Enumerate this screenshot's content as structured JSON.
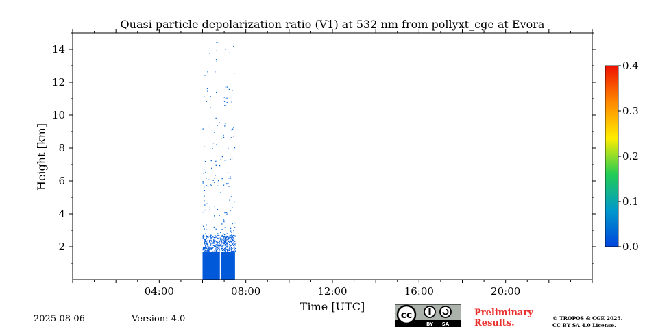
{
  "chart_data": {
    "type": "heatmap",
    "title": "Quasi particle depolarization ratio (V1) at 532 nm from pollyxt_cge at Evora",
    "xlabel": "Time [UTC]",
    "ylabel": "Height [km]",
    "x_range_hours": [
      0,
      24
    ],
    "ylim_km": [
      0,
      15
    ],
    "x_ticks": [
      {
        "hour": 4,
        "label": "04:00"
      },
      {
        "hour": 8,
        "label": "08:00"
      },
      {
        "hour": 12,
        "label": "12:00"
      },
      {
        "hour": 16,
        "label": "16:00"
      },
      {
        "hour": 20,
        "label": "20:00"
      }
    ],
    "y_ticks": [
      {
        "value": 2,
        "label": "2"
      },
      {
        "value": 4,
        "label": "4"
      },
      {
        "value": 6,
        "label": "6"
      },
      {
        "value": 8,
        "label": "8"
      },
      {
        "value": 10,
        "label": "10"
      },
      {
        "value": 12,
        "label": "12"
      },
      {
        "value": 14,
        "label": "14"
      }
    ],
    "colorbar": {
      "min": 0.0,
      "max": 0.4,
      "ticks": [
        {
          "value": 0.0,
          "label": "0.0"
        },
        {
          "value": 0.1,
          "label": "0.1"
        },
        {
          "value": 0.2,
          "label": "0.2"
        },
        {
          "value": 0.3,
          "label": "0.3"
        },
        {
          "value": 0.4,
          "label": "0.4"
        }
      ],
      "colors": [
        "#0044dd",
        "#0099cc",
        "#22cc55",
        "#ffee00",
        "#ff8800",
        "#ee1100"
      ]
    },
    "data_regions": [
      {
        "name": "dense-layer",
        "start_hour": 6.0,
        "end_hour": 7.5,
        "bottom_km": 0.0,
        "top_km": 1.7,
        "value": 0.02
      },
      {
        "name": "sparse-layer",
        "start_hour": 6.0,
        "end_hour": 7.5,
        "bottom_km": 1.7,
        "top_km": 2.7,
        "value": 0.02
      },
      {
        "name": "scattered-points",
        "start_hour": 6.0,
        "end_hour": 7.5,
        "bottom_km": 2.7,
        "top_km": 14.8,
        "value": 0.03
      }
    ],
    "data_gap_hour": 6.8
  },
  "footer": {
    "date": "2025-08-06",
    "version": "Version: 4.0",
    "preliminary_line1": "Preliminary",
    "preliminary_line2": "Results.",
    "copyright_line1": "© TROPOS & CGE 2025.",
    "copyright_line2": "CC BY SA 4.0 License.",
    "badge_by": "BY",
    "badge_sa": "SA",
    "badge_cc": "cc"
  }
}
